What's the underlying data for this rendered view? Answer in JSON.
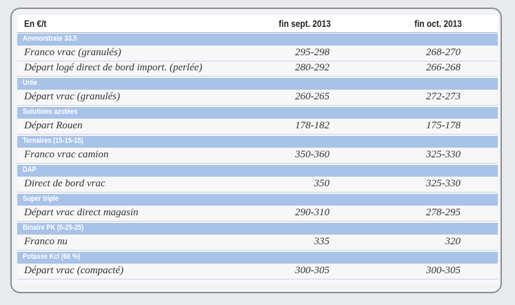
{
  "table": {
    "header": [
      "En €/t",
      "fin sept. 2013",
      "fin oct. 2013"
    ],
    "sections": [
      {
        "title": "Ammonitrate 33.5",
        "rows": [
          [
            "Franco vrac (granulés)",
            "295-298",
            "268-270"
          ],
          [
            "Départ logé direct de bord import. (perlée)",
            "280-292",
            "266-268"
          ]
        ]
      },
      {
        "title": "Urée",
        "rows": [
          [
            "Départ vrac (granulés)",
            "260-265",
            "272-273"
          ]
        ]
      },
      {
        "title": "Solutions azotées",
        "rows": [
          [
            "Départ Rouen",
            "178-182",
            "175-178"
          ]
        ]
      },
      {
        "title": "Ternaires (15-15-15)",
        "rows": [
          [
            "Franco vrac camion",
            "350-360",
            "325-330"
          ]
        ]
      },
      {
        "title": "DAP",
        "rows": [
          [
            "Direct de bord vrac",
            "350",
            "325-330"
          ]
        ]
      },
      {
        "title": "Super triple",
        "rows": [
          [
            "Départ vrac direct magasin",
            "290-310",
            "278-295"
          ]
        ]
      },
      {
        "title": "Binaire PK (0-25-25)",
        "rows": [
          [
            "Franco nu",
            "335",
            "320"
          ]
        ]
      },
      {
        "title": "Potasse Kcl (60 %)",
        "rows": [
          [
            "Départ vrac (compacté)",
            "300-305",
            "300-305"
          ]
        ]
      }
    ]
  }
}
